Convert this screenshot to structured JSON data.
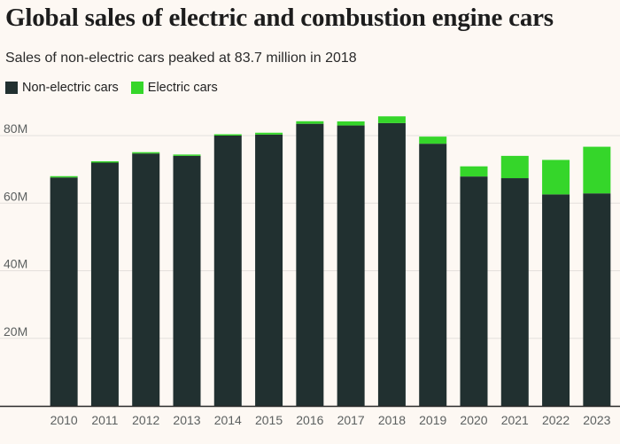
{
  "chart_data": {
    "type": "bar",
    "stacked": true,
    "title": "Global sales of electric and combustion engine cars",
    "subtitle": "Sales of non-electric cars peaked at 83.7 million in 2018",
    "categories": [
      "2010",
      "2011",
      "2012",
      "2013",
      "2014",
      "2015",
      "2016",
      "2017",
      "2018",
      "2019",
      "2020",
      "2021",
      "2022",
      "2023"
    ],
    "series": [
      {
        "name": "Non-electric cars",
        "color": "#213030",
        "values": [
          67.6,
          72.0,
          74.7,
          74.0,
          80.0,
          80.3,
          83.5,
          83.0,
          83.7,
          77.6,
          67.9,
          67.4,
          62.6,
          62.9
        ]
      },
      {
        "name": "Electric cars",
        "color": "#35d62a",
        "values": [
          0.01,
          0.05,
          0.13,
          0.21,
          0.32,
          0.55,
          0.75,
          1.2,
          2.0,
          2.1,
          3.0,
          6.6,
          10.2,
          13.8
        ]
      }
    ],
    "ylim": [
      0,
      85
    ],
    "yticks": [
      20,
      40,
      60,
      80
    ],
    "ytick_labels": [
      "20M",
      "40M",
      "60M",
      "80M"
    ],
    "grid": true,
    "legend": "top-left",
    "xlabel": "",
    "ylabel": ""
  }
}
